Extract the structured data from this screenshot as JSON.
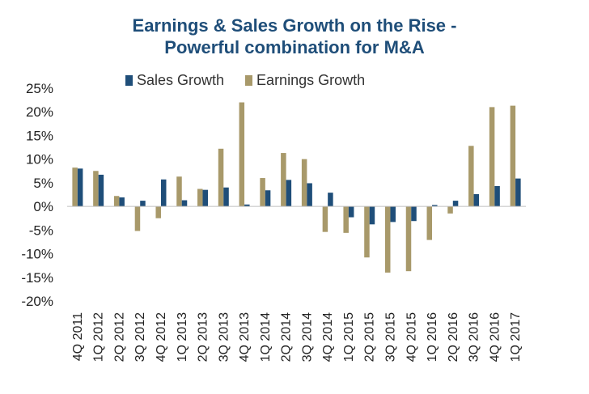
{
  "chart_data": {
    "type": "bar",
    "title_line1": "Earnings & Sales Growth on the Rise -",
    "title_line2": "Powerful combination for M&A",
    "xlabel": "",
    "ylabel": "",
    "ylim": [
      -20,
      25
    ],
    "yticks": [
      "25%",
      "20%",
      "15%",
      "10%",
      "5%",
      "0%",
      "-5%",
      "-10%",
      "-15%",
      "-20%"
    ],
    "ytick_values": [
      25,
      20,
      15,
      10,
      5,
      0,
      -5,
      -10,
      -15,
      -20
    ],
    "legend_position": "top",
    "grid": false,
    "categories": [
      "4Q 2011",
      "1Q 2012",
      "2Q 2012",
      "3Q 2012",
      "4Q 2012",
      "1Q 2013",
      "2Q 2013",
      "3Q 2013",
      "4Q 2013",
      "1Q 2014",
      "2Q 2014",
      "3Q 2014",
      "4Q 2014",
      "1Q 2015",
      "2Q 2015",
      "3Q 2015",
      "4Q 2015",
      "1Q 2016",
      "2Q 2016",
      "3Q 2016",
      "4Q 2016",
      "1Q 2017"
    ],
    "series": [
      {
        "name": "Earnings Growth",
        "color": "#a8996a",
        "values": [
          8.2,
          7.5,
          2.2,
          -5.2,
          -2.5,
          6.3,
          3.7,
          12.2,
          22.0,
          6.0,
          11.3,
          10.0,
          -5.4,
          -5.6,
          -10.8,
          -14.0,
          -13.7,
          -7.1,
          -1.5,
          12.8,
          21.0,
          21.3
        ]
      },
      {
        "name": "Sales Growth",
        "color": "#1f4e79",
        "values": [
          8.0,
          6.7,
          1.9,
          1.2,
          5.7,
          1.3,
          3.5,
          4.0,
          0.4,
          3.4,
          5.6,
          4.9,
          2.9,
          -2.3,
          -3.8,
          -3.3,
          -3.1,
          0.3,
          1.2,
          2.6,
          4.3,
          5.9
        ]
      }
    ]
  }
}
